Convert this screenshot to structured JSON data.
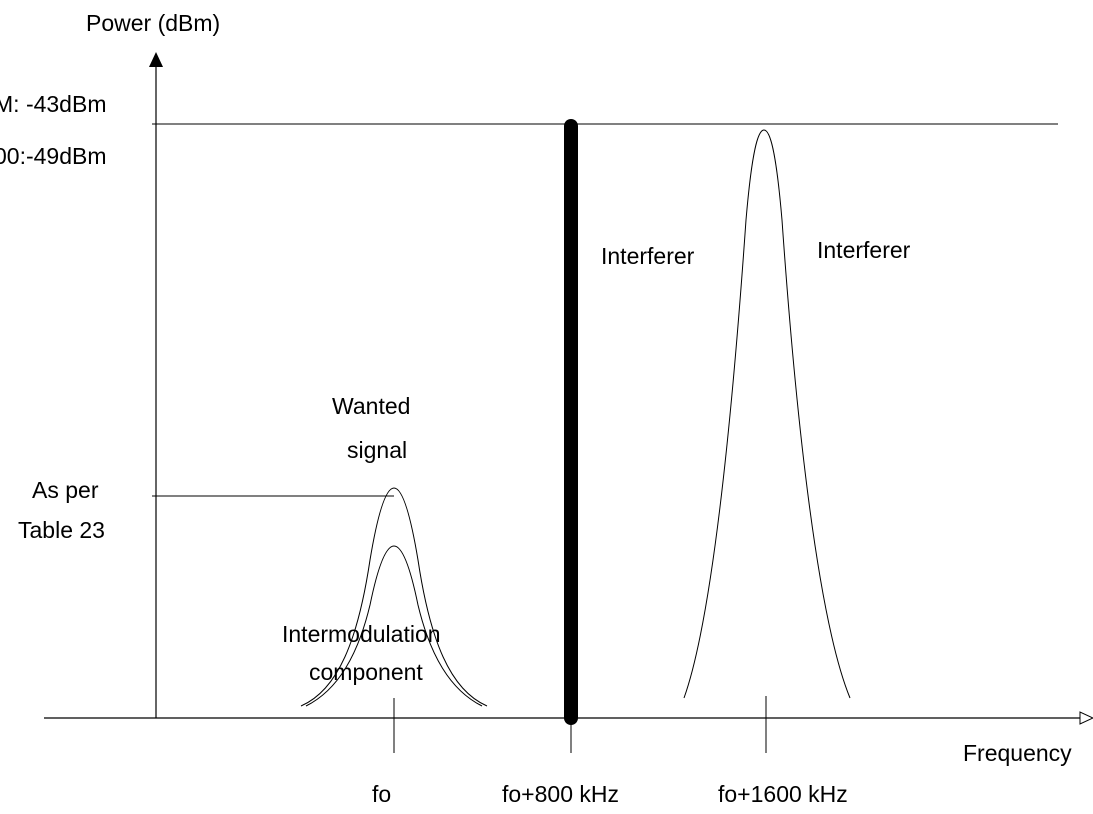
{
  "axes": {
    "y_label": "Power (dBm)",
    "x_label": "Frequency"
  },
  "level_labels": {
    "top_line_1": "M: -43dBm",
    "top_line_2": "00:-49dBm",
    "reference_line_1": "As per",
    "reference_line_2": "Table 23"
  },
  "signals": {
    "wanted_line_1": "Wanted",
    "wanted_line_2": "signal",
    "intermod_line_1": "Intermodulation",
    "intermod_line_2": "component",
    "interferer_1": "Interferer",
    "interferer_2": "Interferer"
  },
  "frequency_ticks": [
    "fo",
    "fo+800 kHz",
    "fo+1600 kHz"
  ],
  "colors": {
    "background": "#ffffff",
    "ink": "#000000"
  }
}
